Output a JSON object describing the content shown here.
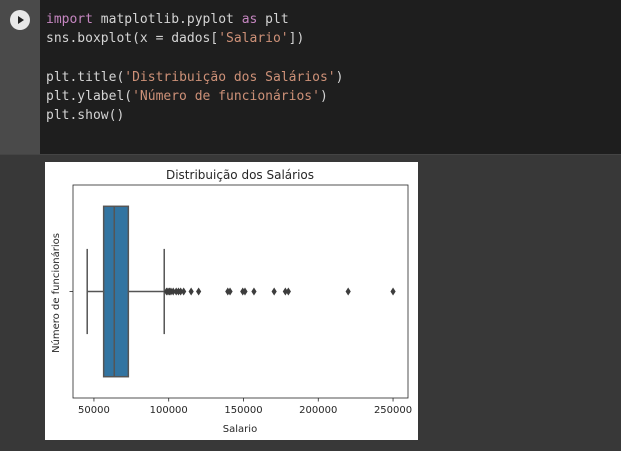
{
  "cell": {
    "run_button": "play-icon",
    "code_lines": [
      [
        {
          "t": "import",
          "c": "kw"
        },
        {
          "t": " matplotlib.pyplot "
        },
        {
          "t": "as",
          "c": "kw"
        },
        {
          "t": " plt"
        }
      ],
      [
        {
          "t": "sns.boxplot(x = dados["
        },
        {
          "t": "'Salario'",
          "c": "str"
        },
        {
          "t": "])"
        }
      ],
      [],
      [
        {
          "t": "plt.title("
        },
        {
          "t": "'Distribuição dos Salários'",
          "c": "str"
        },
        {
          "t": ")"
        }
      ],
      [
        {
          "t": "plt.ylabel("
        },
        {
          "t": "'Número de funcionários'",
          "c": "str"
        },
        {
          "t": ")"
        }
      ],
      [
        {
          "t": "plt.show()"
        }
      ]
    ]
  },
  "chart_data": {
    "type": "boxplot",
    "title": "Distribuição dos Salários",
    "xlabel": "Salario",
    "ylabel": "Número de funcionários",
    "xlim": [
      36000,
      260000
    ],
    "xticks": [
      50000,
      100000,
      150000,
      200000,
      250000
    ],
    "box": {
      "whisker_low": 45500,
      "q1": 56500,
      "median": 63600,
      "q3": 73000,
      "whisker_high": 97000
    },
    "outliers": [
      98500,
      99500,
      100500,
      101500,
      103000,
      105000,
      106500,
      108000,
      110000,
      115000,
      120000,
      139500,
      141000,
      149500,
      151000,
      157000,
      170500,
      178000,
      180000,
      220000,
      250000
    ],
    "box_color": "#3274a1",
    "grid": false
  }
}
